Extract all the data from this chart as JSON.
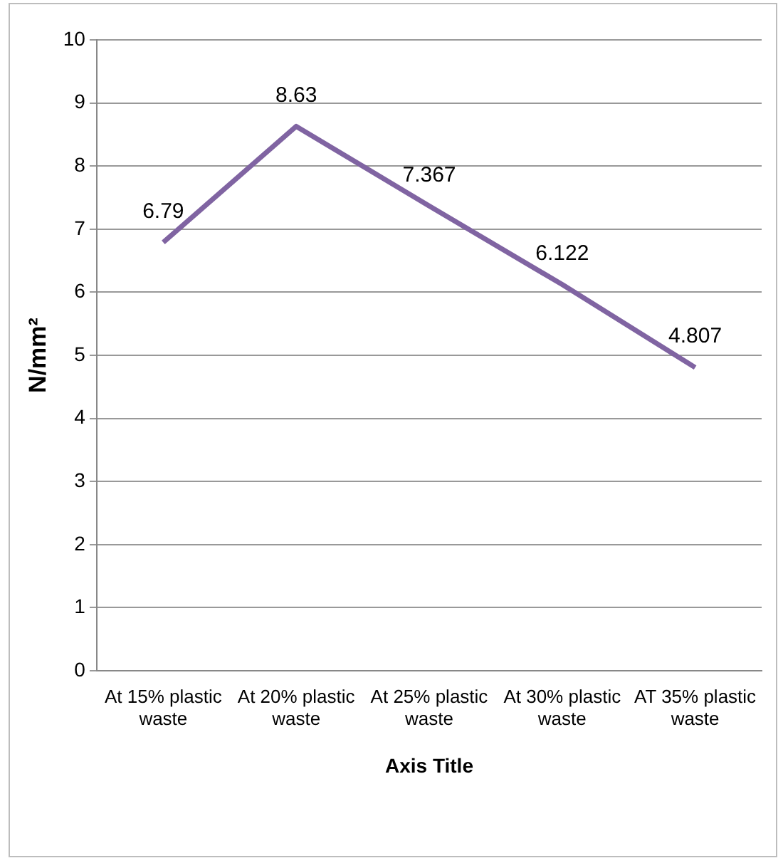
{
  "chart_data": {
    "type": "line",
    "xlabel": "Axis Title",
    "ylabel": "N/mm²",
    "categories": [
      "At 15% plastic waste",
      "At 20% plastic waste",
      "At 25% plastic waste",
      "At 30% plastic waste",
      "AT 35% plastic waste"
    ],
    "series": [
      {
        "color": "#8064a2",
        "values": [
          6.79,
          8.63,
          7.367,
          6.122,
          4.807
        ]
      }
    ],
    "ylim": [
      0,
      10
    ],
    "yticks": [
      0,
      1,
      2,
      3,
      4,
      5,
      6,
      7,
      8,
      9,
      10
    ],
    "grid": "y",
    "legend": false,
    "marker": "none",
    "data_labels": true
  }
}
